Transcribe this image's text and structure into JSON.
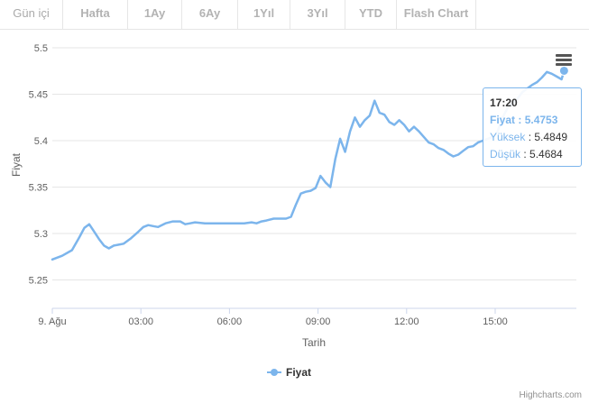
{
  "tabs": [
    {
      "label": "Gün içi",
      "active": true
    },
    {
      "label": "Hafta",
      "active": false
    },
    {
      "label": "1Ay",
      "active": false
    },
    {
      "label": "6Ay",
      "active": false
    },
    {
      "label": "1Yıl",
      "active": false
    },
    {
      "label": "3Yıl",
      "active": false
    },
    {
      "label": "YTD",
      "active": false
    },
    {
      "label": "Flash Chart",
      "active": false
    }
  ],
  "credits": "Highcharts.com",
  "tooltip": {
    "time": "17:20",
    "fiyat_label": "Fiyat",
    "fiyat_value": "5.4753",
    "yuksek_label": "Yüksek",
    "yuksek_value": "5.4849",
    "dusuk_label": "Düşük",
    "dusuk_value": "5.4684"
  },
  "colors": {
    "series": "#7cb5ec",
    "grid": "#e6e6e6",
    "axis_text": "#606060"
  },
  "chart_data": {
    "type": "line",
    "xlabel": "Tarih",
    "ylabel": "Fiyat",
    "ylim": [
      5.2,
      5.5
    ],
    "xlim": [
      "00:00",
      "17:45"
    ],
    "y_ticks": [
      "5.25",
      "5.3",
      "5.35",
      "5.4",
      "5.45",
      "5.5"
    ],
    "x_ticks": [
      {
        "label": "9. Ağu",
        "x": "00:00"
      },
      {
        "label": "03:00",
        "x": "03:00"
      },
      {
        "label": "06:00",
        "x": "06:00"
      },
      {
        "label": "09:00",
        "x": "09:00"
      },
      {
        "label": "12:00",
        "x": "12:00"
      },
      {
        "label": "15:00",
        "x": "15:00"
      }
    ],
    "legend": "bottom-center",
    "grid": true,
    "series": [
      {
        "name": "Fiyat",
        "x": [
          "00:00",
          "00:20",
          "00:40",
          "00:55",
          "01:05",
          "01:15",
          "01:25",
          "01:35",
          "01:45",
          "01:55",
          "02:05",
          "02:15",
          "02:25",
          "02:40",
          "02:55",
          "03:05",
          "03:15",
          "03:25",
          "03:35",
          "03:50",
          "04:05",
          "04:20",
          "04:30",
          "04:40",
          "04:50",
          "05:10",
          "05:30",
          "05:50",
          "06:10",
          "06:30",
          "06:45",
          "06:55",
          "07:05",
          "07:15",
          "07:30",
          "07:45",
          "07:55",
          "08:05",
          "08:15",
          "08:25",
          "08:35",
          "08:45",
          "08:55",
          "09:05",
          "09:15",
          "09:25",
          "09:35",
          "09:45",
          "09:55",
          "10:05",
          "10:15",
          "10:25",
          "10:35",
          "10:45",
          "10:55",
          "11:05",
          "11:15",
          "11:25",
          "11:35",
          "11:45",
          "11:55",
          "12:05",
          "12:15",
          "12:25",
          "12:35",
          "12:45",
          "12:55",
          "13:05",
          "13:15",
          "13:25",
          "13:35",
          "13:45",
          "13:55",
          "14:05",
          "14:15",
          "14:25",
          "14:35",
          "14:45",
          "14:55",
          "15:05",
          "15:15",
          "15:25",
          "15:35",
          "15:45",
          "15:55",
          "16:05",
          "16:15",
          "16:25",
          "16:35",
          "16:45",
          "16:55",
          "17:05",
          "17:15",
          "17:20"
        ],
        "values": [
          5.272,
          5.276,
          5.282,
          5.296,
          5.306,
          5.31,
          5.302,
          5.294,
          5.287,
          5.284,
          5.287,
          5.288,
          5.289,
          5.295,
          5.302,
          5.307,
          5.309,
          5.308,
          5.307,
          5.311,
          5.313,
          5.313,
          5.31,
          5.311,
          5.312,
          5.311,
          5.311,
          5.311,
          5.311,
          5.311,
          5.312,
          5.311,
          5.313,
          5.314,
          5.316,
          5.316,
          5.316,
          5.318,
          5.331,
          5.343,
          5.345,
          5.346,
          5.349,
          5.362,
          5.355,
          5.35,
          5.38,
          5.402,
          5.388,
          5.41,
          5.425,
          5.415,
          5.422,
          5.427,
          5.443,
          5.43,
          5.428,
          5.42,
          5.417,
          5.422,
          5.417,
          5.41,
          5.415,
          5.41,
          5.404,
          5.398,
          5.396,
          5.392,
          5.39,
          5.386,
          5.383,
          5.385,
          5.389,
          5.393,
          5.394,
          5.398,
          5.4,
          5.402,
          5.404,
          5.41,
          5.425,
          5.435,
          5.44,
          5.445,
          5.452,
          5.456,
          5.46,
          5.463,
          5.468,
          5.474,
          5.472,
          5.469,
          5.466,
          5.4753
        ]
      }
    ]
  }
}
